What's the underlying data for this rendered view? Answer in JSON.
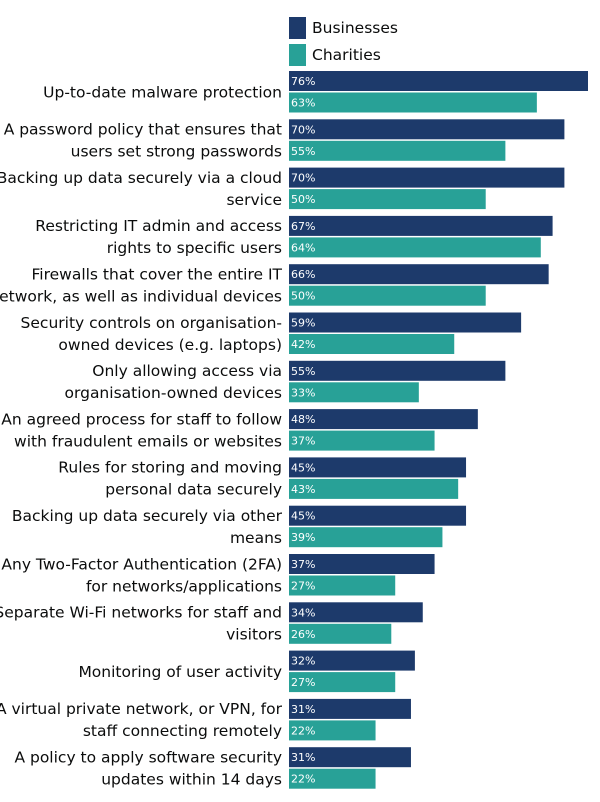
{
  "chart_data": {
    "type": "bar",
    "orientation": "horizontal",
    "categories": [
      [
        "Up-to-date malware protection"
      ],
      [
        "A password policy that ensures that",
        "users set strong passwords"
      ],
      [
        "Backing up data securely via a cloud",
        "service"
      ],
      [
        "Restricting IT admin and access",
        "rights to specific users"
      ],
      [
        "Firewalls that cover the entire IT",
        "network, as well as individual devices"
      ],
      [
        "Security controls on organisation-",
        "owned devices (e.g. laptops)"
      ],
      [
        "Only allowing access via",
        "organisation-owned devices"
      ],
      [
        "An agreed process for staff to follow",
        "with fraudulent emails or websites"
      ],
      [
        "Rules for storing and moving",
        "personal data securely"
      ],
      [
        "Backing up data securely via other",
        "means"
      ],
      [
        "Any Two-Factor Authentication (2FA)",
        "for networks/applications"
      ],
      [
        "Separate Wi-Fi networks for staff and",
        "visitors"
      ],
      [
        "Monitoring of user activity"
      ],
      [
        "A virtual private network, or VPN, for",
        "staff connecting remotely"
      ],
      [
        "A policy to apply software security",
        "updates within 14 days"
      ]
    ],
    "series": [
      {
        "name": "Businesses",
        "color": "#1d3a6b",
        "values": [
          76,
          70,
          70,
          67,
          66,
          59,
          55,
          48,
          45,
          45,
          37,
          34,
          32,
          31,
          31
        ],
        "labels": [
          "76%",
          "70%",
          "70%",
          "67%",
          "66%",
          "59%",
          "55%",
          "48%",
          "45%",
          "45%",
          "37%",
          "34%",
          "32%",
          "31%",
          "31%"
        ]
      },
      {
        "name": "Charities",
        "color": "#28a197",
        "values": [
          63,
          55,
          50,
          64,
          50,
          42,
          33,
          37,
          43,
          39,
          27,
          26,
          27,
          22,
          22
        ],
        "labels": [
          "63%",
          "55%",
          "50%",
          "64%",
          "50%",
          "42%",
          "33%",
          "37%",
          "43%",
          "39%",
          "27%",
          "26%",
          "27%",
          "22%",
          "22%"
        ]
      }
    ],
    "xlim": [
      0,
      76
    ],
    "legend": "top",
    "grid": false
  }
}
